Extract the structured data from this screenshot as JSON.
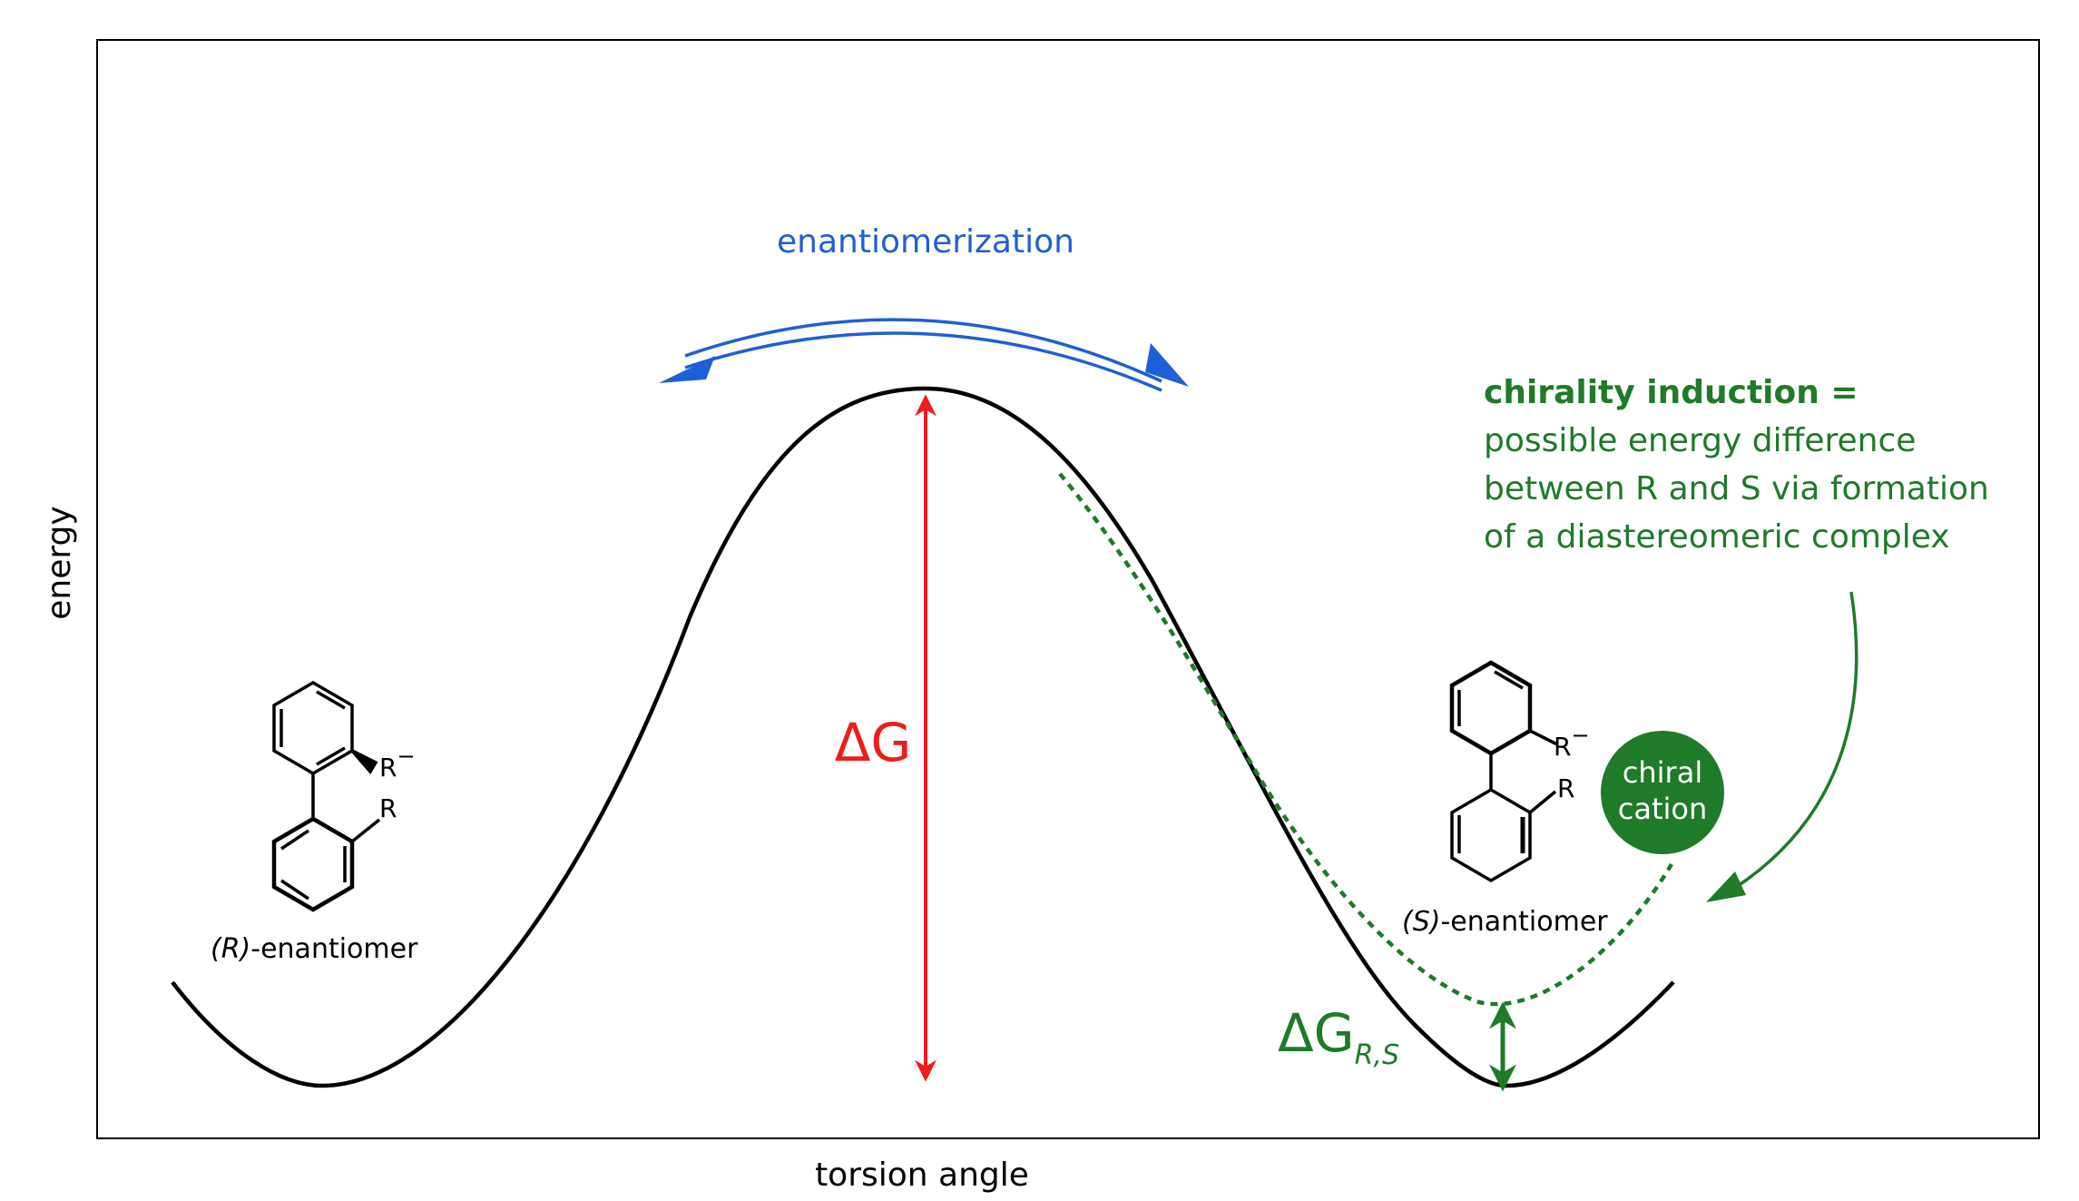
{
  "axes": {
    "xlabel": "torsion angle",
    "ylabel": "energy"
  },
  "annotations": {
    "enantiomerization": "enantiomerization",
    "delta_g": "ΔG",
    "delta_g_rs_main": "ΔG",
    "delta_g_rs_sub": "R,S",
    "r_label_italic": "(R)",
    "s_label_italic": "(S)",
    "enantiomer_suffix": "-enantiomer",
    "substituent_r": "R",
    "substituent_r_minus": "R",
    "minus_sign": "−",
    "chiral_cation_line1": "chiral",
    "chiral_cation_line2": "cation",
    "induction_title": "chirality induction =",
    "induction_line1": "possible energy difference",
    "induction_line2": "between R and S via formation",
    "induction_line3": "of a diastereomeric complex"
  },
  "colors": {
    "curve": "#000000",
    "blue": "#1f5fd6",
    "red": "#ee1c1c",
    "green": "#1f7a2a"
  }
}
